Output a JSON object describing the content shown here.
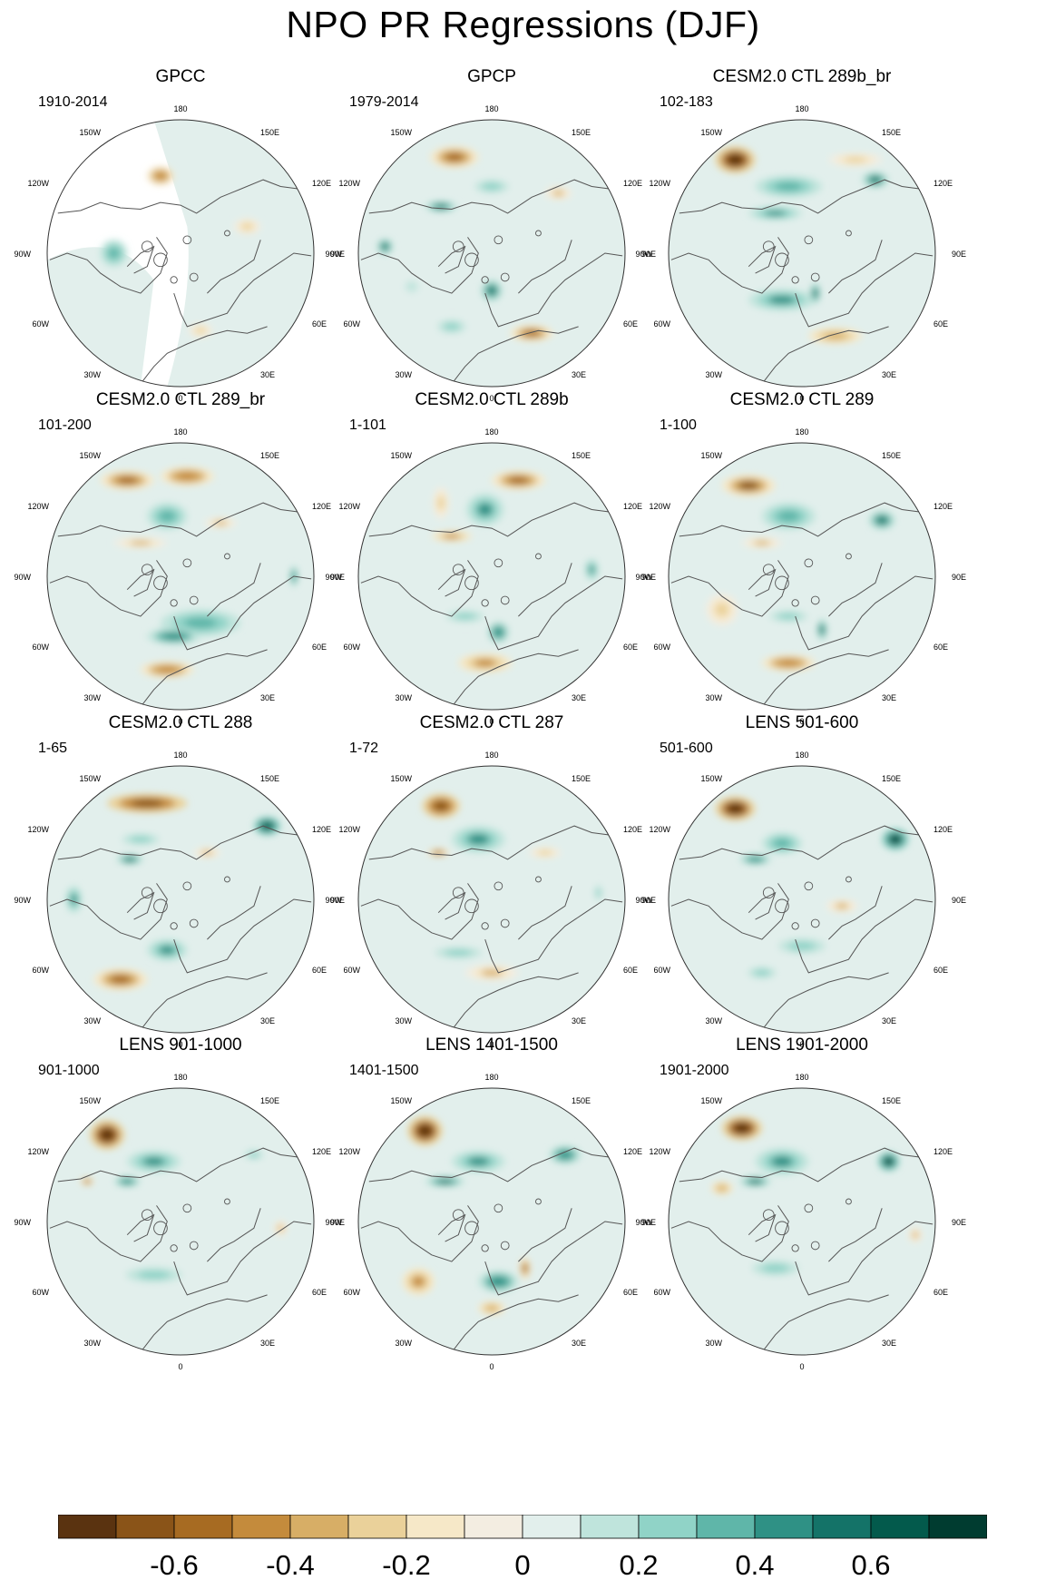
{
  "figure": {
    "title": "NPO PR Regressions (DJF)"
  },
  "colors": {
    "palette": [
      "#5a3310",
      "#8a5418",
      "#a76b22",
      "#c48b3c",
      "#d7ae66",
      "#ead19a",
      "#f6e8c8",
      "#f3ede1",
      "#e2efec",
      "#bfe4dc",
      "#90d3c7",
      "#5fb6a9",
      "#2f9185",
      "#147368",
      "#035a4c",
      "#003c30"
    ],
    "coast": "#555555",
    "missing": "#ffffff"
  },
  "tick_labels": {
    "top": "180",
    "bottom": "0",
    "left": [
      "150W",
      "120W",
      "90W",
      "60W",
      "30W"
    ],
    "right": [
      "150E",
      "120E",
      "90E",
      "60E",
      "30E"
    ]
  },
  "chart_data": {
    "type": "heatmap",
    "title": "NPO PR Regressions (DJF)",
    "projection": "North polar stereographic",
    "colorbar": {
      "levels": [
        -0.7,
        -0.6,
        -0.5,
        -0.4,
        -0.3,
        -0.2,
        -0.1,
        0,
        0.1,
        0.2,
        0.3,
        0.4,
        0.5,
        0.6,
        0.7
      ],
      "tick_values": [
        -0.6,
        -0.4,
        -0.2,
        0,
        0.2,
        0.4,
        0.6
      ],
      "tick_labels": [
        "-0.6",
        "-0.4",
        "-0.2",
        "0",
        "0.2",
        "0.4",
        "0.6"
      ]
    },
    "panels": [
      {
        "title": "GPCC",
        "period": "1910-2014",
        "missing_ocean": true,
        "blobs": [
          [
            -0.15,
            -0.58,
            0.1,
            0.07,
            -0.45
          ],
          [
            -0.5,
            0.0,
            0.1,
            0.1,
            0.35
          ],
          [
            0.5,
            -0.2,
            0.1,
            0.06,
            -0.2
          ],
          [
            0.15,
            0.58,
            0.09,
            0.05,
            -0.2
          ]
        ]
      },
      {
        "title": "GPCP",
        "period": "1979-2014",
        "blobs": [
          [
            -0.28,
            -0.72,
            0.18,
            0.08,
            -0.55
          ],
          [
            0.0,
            -0.5,
            0.18,
            0.07,
            0.3
          ],
          [
            -0.38,
            -0.35,
            0.12,
            0.04,
            0.55
          ],
          [
            -0.8,
            -0.05,
            0.06,
            0.06,
            0.6
          ],
          [
            0.0,
            0.28,
            0.08,
            0.08,
            0.55
          ],
          [
            0.3,
            0.6,
            0.16,
            0.06,
            -0.5
          ],
          [
            -0.3,
            0.55,
            0.15,
            0.07,
            0.2
          ],
          [
            0.5,
            -0.45,
            0.1,
            0.05,
            -0.3
          ],
          [
            -0.6,
            0.25,
            0.12,
            0.1,
            0.15
          ]
        ]
      },
      {
        "title": "CESM2.0 CTL 289b_br",
        "period": "102-183",
        "blobs": [
          [
            -0.5,
            -0.7,
            0.15,
            0.1,
            -0.75
          ],
          [
            -0.1,
            -0.5,
            0.25,
            0.08,
            0.35
          ],
          [
            0.55,
            -0.55,
            0.1,
            0.06,
            0.55
          ],
          [
            -0.2,
            -0.3,
            0.2,
            0.05,
            0.4
          ],
          [
            -0.15,
            0.35,
            0.25,
            0.08,
            0.4
          ],
          [
            0.1,
            0.3,
            0.04,
            0.08,
            0.6
          ],
          [
            0.25,
            0.62,
            0.2,
            0.06,
            -0.35
          ],
          [
            0.4,
            -0.7,
            0.2,
            0.05,
            -0.2
          ]
        ]
      },
      {
        "title": "CESM2.0 CTL 289_br",
        "period": "101-200",
        "blobs": [
          [
            -0.4,
            -0.72,
            0.2,
            0.07,
            -0.5
          ],
          [
            0.05,
            -0.75,
            0.2,
            0.07,
            -0.45
          ],
          [
            -0.1,
            -0.45,
            0.15,
            0.1,
            0.35
          ],
          [
            -0.3,
            -0.25,
            0.2,
            0.04,
            -0.3
          ],
          [
            0.15,
            0.35,
            0.3,
            0.1,
            0.35
          ],
          [
            -0.05,
            0.45,
            0.2,
            0.06,
            0.5
          ],
          [
            -0.1,
            0.7,
            0.2,
            0.06,
            -0.45
          ],
          [
            0.85,
            0.0,
            0.03,
            0.08,
            0.5
          ],
          [
            0.3,
            -0.4,
            0.12,
            0.04,
            -0.3
          ]
        ]
      },
      {
        "title": "CESM2.0 CTL 289b",
        "period": "1-101",
        "blobs": [
          [
            0.2,
            -0.72,
            0.2,
            0.07,
            -0.5
          ],
          [
            -0.05,
            -0.5,
            0.14,
            0.12,
            0.45
          ],
          [
            -0.38,
            -0.55,
            0.06,
            0.12,
            -0.25
          ],
          [
            -0.3,
            -0.3,
            0.15,
            0.04,
            -0.4
          ],
          [
            0.05,
            0.42,
            0.08,
            0.08,
            0.5
          ],
          [
            -0.2,
            0.3,
            0.2,
            0.06,
            0.25
          ],
          [
            -0.05,
            0.65,
            0.2,
            0.07,
            -0.4
          ],
          [
            0.75,
            -0.05,
            0.05,
            0.08,
            0.4
          ]
        ]
      },
      {
        "title": "CESM2.0 CTL 289",
        "period": "1-100",
        "blobs": [
          [
            -0.4,
            -0.68,
            0.2,
            0.08,
            -0.6
          ],
          [
            -0.1,
            -0.45,
            0.2,
            0.1,
            0.35
          ],
          [
            0.6,
            -0.42,
            0.1,
            0.07,
            0.6
          ],
          [
            -0.3,
            -0.25,
            0.15,
            0.04,
            -0.3
          ],
          [
            -0.1,
            0.3,
            0.2,
            0.06,
            0.3
          ],
          [
            0.15,
            0.4,
            0.04,
            0.08,
            0.6
          ],
          [
            -0.1,
            0.65,
            0.2,
            0.06,
            -0.45
          ],
          [
            -0.6,
            0.25,
            0.12,
            0.12,
            -0.2
          ]
        ]
      },
      {
        "title": "CESM2.0 CTL 288",
        "period": "1-65",
        "blobs": [
          [
            -0.25,
            -0.72,
            0.3,
            0.07,
            -0.65
          ],
          [
            -0.3,
            -0.45,
            0.2,
            0.06,
            0.3
          ],
          [
            -0.38,
            -0.3,
            0.1,
            0.04,
            0.6
          ],
          [
            0.65,
            -0.55,
            0.1,
            0.07,
            0.65
          ],
          [
            -0.1,
            0.38,
            0.15,
            0.08,
            0.45
          ],
          [
            -0.45,
            0.6,
            0.2,
            0.08,
            -0.5
          ],
          [
            -0.8,
            0.0,
            0.06,
            0.1,
            0.4
          ],
          [
            0.2,
            -0.35,
            0.1,
            0.04,
            -0.3
          ]
        ]
      },
      {
        "title": "CESM2.0 CTL 287",
        "period": "1-72",
        "blobs": [
          [
            -0.38,
            -0.7,
            0.14,
            0.09,
            -0.7
          ],
          [
            -0.1,
            -0.45,
            0.2,
            0.1,
            0.45
          ],
          [
            -0.4,
            -0.35,
            0.08,
            0.03,
            -0.5
          ],
          [
            -0.25,
            0.4,
            0.25,
            0.06,
            0.25
          ],
          [
            0.0,
            0.55,
            0.2,
            0.06,
            -0.3
          ],
          [
            0.4,
            -0.35,
            0.12,
            0.04,
            -0.25
          ],
          [
            0.8,
            -0.05,
            0.04,
            0.08,
            0.3
          ]
        ]
      },
      {
        "title": "LENS 501-600",
        "period": "501-600",
        "blobs": [
          [
            -0.5,
            -0.68,
            0.15,
            0.09,
            -0.75
          ],
          [
            -0.15,
            -0.42,
            0.15,
            0.08,
            0.35
          ],
          [
            -0.35,
            -0.3,
            0.12,
            0.04,
            0.5
          ],
          [
            0.7,
            -0.45,
            0.1,
            0.08,
            0.75
          ],
          [
            0.0,
            0.35,
            0.25,
            0.08,
            0.25
          ],
          [
            0.3,
            0.05,
            0.12,
            0.05,
            -0.3
          ],
          [
            -0.3,
            0.55,
            0.15,
            0.06,
            0.2
          ]
        ]
      },
      {
        "title": "LENS 901-1000",
        "period": "901-1000",
        "blobs": [
          [
            -0.55,
            -0.65,
            0.13,
            0.11,
            -0.8
          ],
          [
            -0.2,
            -0.45,
            0.2,
            0.08,
            0.45
          ],
          [
            -0.4,
            -0.3,
            0.1,
            0.04,
            0.5
          ],
          [
            0.55,
            -0.5,
            0.1,
            0.05,
            0.2
          ],
          [
            -0.2,
            0.4,
            0.3,
            0.08,
            0.2
          ],
          [
            0.75,
            0.05,
            0.05,
            0.06,
            -0.3
          ],
          [
            -0.7,
            -0.3,
            0.05,
            0.03,
            -0.5
          ]
        ]
      },
      {
        "title": "LENS 1401-1500",
        "period": "1401-1500",
        "blobs": [
          [
            -0.5,
            -0.68,
            0.13,
            0.11,
            -0.8
          ],
          [
            -0.1,
            -0.45,
            0.2,
            0.08,
            0.4
          ],
          [
            -0.35,
            -0.3,
            0.15,
            0.04,
            0.55
          ],
          [
            0.55,
            -0.5,
            0.12,
            0.07,
            0.5
          ],
          [
            0.05,
            0.45,
            0.15,
            0.08,
            0.5
          ],
          [
            -0.55,
            0.45,
            0.12,
            0.1,
            -0.4
          ],
          [
            0.0,
            0.65,
            0.1,
            0.05,
            -0.35
          ],
          [
            0.25,
            0.35,
            0.04,
            0.08,
            -0.5
          ]
        ]
      },
      {
        "title": "LENS 1901-2000",
        "period": "1901-2000",
        "blobs": [
          [
            -0.45,
            -0.7,
            0.15,
            0.09,
            -0.8
          ],
          [
            -0.15,
            -0.45,
            0.2,
            0.1,
            0.45
          ],
          [
            -0.35,
            -0.3,
            0.12,
            0.04,
            0.55
          ],
          [
            0.65,
            -0.45,
            0.08,
            0.07,
            0.75
          ],
          [
            -0.2,
            0.35,
            0.25,
            0.08,
            0.25
          ],
          [
            0.85,
            0.1,
            0.05,
            0.06,
            -0.3
          ],
          [
            -0.6,
            -0.25,
            0.08,
            0.05,
            -0.35
          ]
        ]
      }
    ]
  }
}
